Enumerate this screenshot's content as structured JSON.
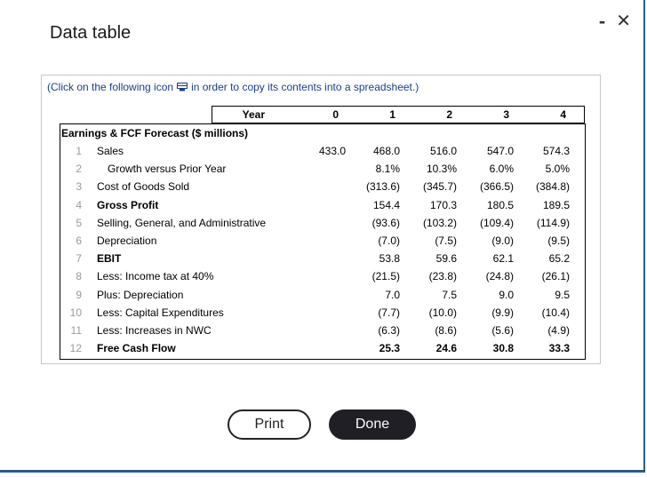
{
  "window": {
    "title": "Data table",
    "minimize_glyph": "-",
    "close_glyph": "✕"
  },
  "instruction": {
    "before": "(Click on the following icon",
    "after": "in order to copy its contents into a spreadsheet.)",
    "icon": "copy-spreadsheet-icon"
  },
  "table": {
    "year_label": "Year",
    "years": [
      "0",
      "1",
      "2",
      "3",
      "4"
    ],
    "section_title": "Earnings & FCF Forecast ($ millions)",
    "rows": [
      {
        "num": "1",
        "label": "Sales",
        "values": [
          "433.0",
          "468.0",
          "516.0",
          "547.0",
          "574.3"
        ]
      },
      {
        "num": "2",
        "label": "Growth versus Prior Year",
        "values": [
          "",
          "8.1%",
          "10.3%",
          "6.0%",
          "5.0%"
        ]
      },
      {
        "num": "3",
        "label": "Cost of Goods Sold",
        "values": [
          "",
          "(313.6)",
          "(345.7)",
          "(366.5)",
          "(384.8)"
        ]
      },
      {
        "num": "4",
        "label": "Gross Profit",
        "values": [
          "",
          "154.4",
          "170.3",
          "180.5",
          "189.5"
        ]
      },
      {
        "num": "5",
        "label": "Selling, General, and Administrative",
        "values": [
          "",
          "(93.6)",
          "(103.2)",
          "(109.4)",
          "(114.9)"
        ]
      },
      {
        "num": "6",
        "label": "Depreciation",
        "values": [
          "",
          "(7.0)",
          "(7.5)",
          "(9.0)",
          "(9.5)"
        ]
      },
      {
        "num": "7",
        "label": "EBIT",
        "values": [
          "",
          "53.8",
          "59.6",
          "62.1",
          "65.2"
        ]
      },
      {
        "num": "8",
        "label": "Less: Income tax at 40%",
        "values": [
          "",
          "(21.5)",
          "(23.8)",
          "(24.8)",
          "(26.1)"
        ]
      },
      {
        "num": "9",
        "label": "Plus: Depreciation",
        "values": [
          "",
          "7.0",
          "7.5",
          "9.0",
          "9.5"
        ]
      },
      {
        "num": "10",
        "label": "Less: Capital Expenditures",
        "values": [
          "",
          "(7.7)",
          "(10.0)",
          "(9.9)",
          "(10.4)"
        ]
      },
      {
        "num": "11",
        "label": "Less: Increases in NWC",
        "values": [
          "",
          "(6.3)",
          "(8.6)",
          "(5.6)",
          "(4.9)"
        ]
      },
      {
        "num": "12",
        "label": "Free Cash Flow",
        "values": [
          "",
          "25.3",
          "24.6",
          "30.8",
          "33.3"
        ]
      }
    ]
  },
  "buttons": {
    "print": "Print",
    "done": "Done"
  }
}
